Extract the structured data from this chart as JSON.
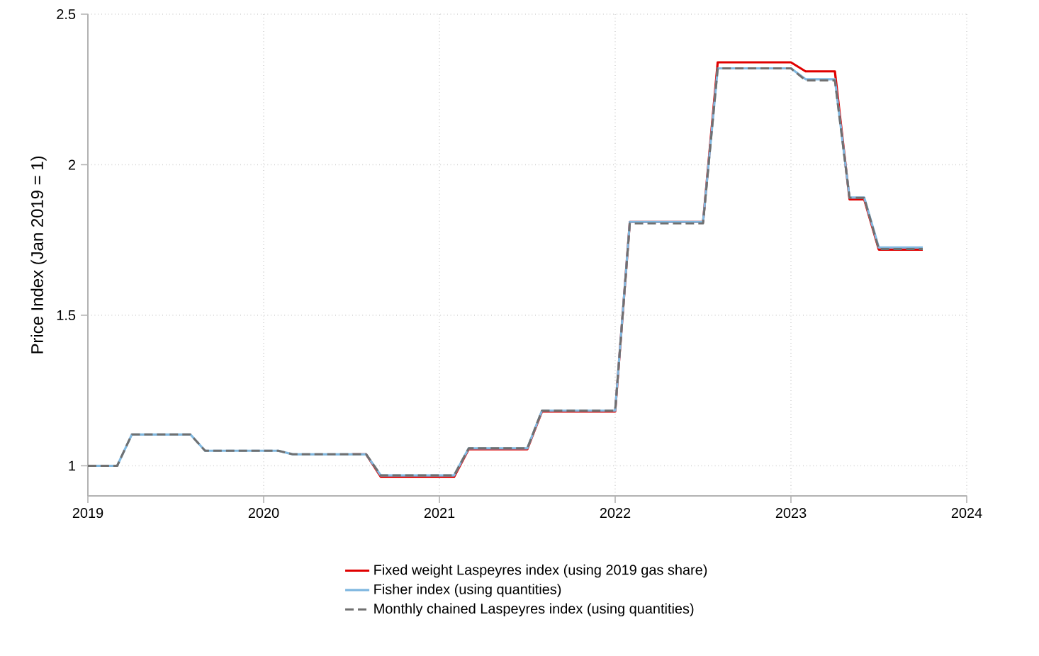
{
  "chart_data": {
    "type": "line",
    "ylabel": "Price Index (Jan 2019 = 1)",
    "x": [
      "2019-01",
      "2019-02",
      "2019-03",
      "2019-04",
      "2019-05",
      "2019-06",
      "2019-07",
      "2019-08",
      "2019-09",
      "2019-10",
      "2019-11",
      "2019-12",
      "2020-01",
      "2020-02",
      "2020-03",
      "2020-04",
      "2020-05",
      "2020-06",
      "2020-07",
      "2020-08",
      "2020-09",
      "2020-10",
      "2020-11",
      "2020-12",
      "2021-01",
      "2021-02",
      "2021-03",
      "2021-04",
      "2021-05",
      "2021-06",
      "2021-07",
      "2021-08",
      "2021-09",
      "2021-10",
      "2021-11",
      "2021-12",
      "2022-01",
      "2022-02",
      "2022-03",
      "2022-04",
      "2022-05",
      "2022-06",
      "2022-07",
      "2022-08",
      "2022-09",
      "2022-10",
      "2022-11",
      "2022-12",
      "2023-01",
      "2023-02",
      "2023-03",
      "2023-04",
      "2023-05",
      "2023-06",
      "2023-07",
      "2023-08",
      "2023-09",
      "2023-10"
    ],
    "series": [
      {
        "name": "Fixed weight Laspeyres index (using 2019 gas share)",
        "color": "#e00000",
        "line_style": "solid",
        "values": [
          null,
          null,
          null,
          null,
          null,
          null,
          null,
          null,
          null,
          null,
          null,
          null,
          null,
          null,
          null,
          null,
          null,
          null,
          1.038,
          1.038,
          0.963,
          0.963,
          0.963,
          0.963,
          0.963,
          0.963,
          1.055,
          1.055,
          1.055,
          1.055,
          1.055,
          1.18,
          1.18,
          1.18,
          1.18,
          1.18,
          1.18,
          1.81,
          1.81,
          1.81,
          1.81,
          1.81,
          1.81,
          2.34,
          2.34,
          2.34,
          2.34,
          2.34,
          2.34,
          2.31,
          2.31,
          2.31,
          1.885,
          1.885,
          1.718,
          1.718,
          1.718,
          1.718
        ]
      },
      {
        "name": "Fisher index (using quantities)",
        "color": "#80b8e0",
        "line_style": "solid",
        "values": [
          1,
          1,
          1,
          1.104,
          1.104,
          1.104,
          1.104,
          1.104,
          1.05,
          1.05,
          1.05,
          1.05,
          1.05,
          1.05,
          1.038,
          1.038,
          1.038,
          1.038,
          1.038,
          1.038,
          0.968,
          0.968,
          0.968,
          0.968,
          0.968,
          0.968,
          1.058,
          1.058,
          1.058,
          1.058,
          1.058,
          1.183,
          1.183,
          1.183,
          1.183,
          1.183,
          1.183,
          1.81,
          1.81,
          1.81,
          1.81,
          1.81,
          1.81,
          2.32,
          2.32,
          2.32,
          2.32,
          2.32,
          2.32,
          2.284,
          2.284,
          2.284,
          1.891,
          1.891,
          1.725,
          1.725,
          1.725,
          1.725
        ]
      },
      {
        "name": "Monthly chained Laspeyres index (using quantities)",
        "color": "#707070",
        "line_style": "dashed",
        "values": [
          1,
          1,
          1,
          1.104,
          1.104,
          1.104,
          1.104,
          1.104,
          1.05,
          1.05,
          1.05,
          1.05,
          1.05,
          1.05,
          1.038,
          1.038,
          1.038,
          1.038,
          1.038,
          1.038,
          0.968,
          0.968,
          0.968,
          0.968,
          0.968,
          0.968,
          1.058,
          1.058,
          1.058,
          1.058,
          1.058,
          1.183,
          1.183,
          1.183,
          1.183,
          1.183,
          1.183,
          1.805,
          1.805,
          1.805,
          1.805,
          1.805,
          1.805,
          2.32,
          2.32,
          2.32,
          2.32,
          2.32,
          2.32,
          2.28,
          2.28,
          2.28,
          1.89,
          1.89,
          1.72,
          1.72,
          1.72,
          1.72
        ]
      }
    ],
    "xlim": [
      "2019",
      "2024"
    ],
    "xticks": [
      "2019",
      "2020",
      "2021",
      "2022",
      "2023",
      "2024"
    ],
    "ylim": [
      0.9,
      2.5
    ],
    "yticks": [
      1,
      1.5,
      2,
      2.5
    ],
    "grid": true,
    "legend": "bottom",
    "marker": "none"
  }
}
